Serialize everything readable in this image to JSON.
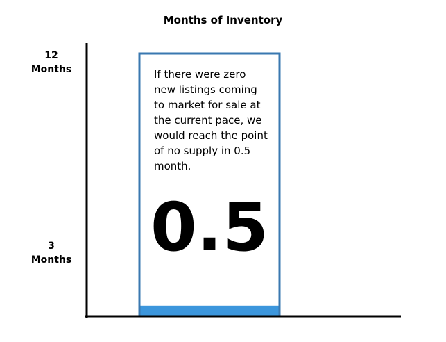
{
  "chart_data": {
    "type": "bar",
    "title": "Months of Inventory",
    "categories": [
      null
    ],
    "values": [
      0.5
    ],
    "color": "#3c96dc",
    "annotation": "If there were zero new listings coming to market for sale at the current pace, we would reach the point of no supply in 0.5 month.",
    "ylim": [
      0,
      13
    ],
    "yticks": [
      {
        "value": 3,
        "label": "3 Months"
      },
      {
        "value": 12,
        "label": "12 Months"
      }
    ]
  }
}
